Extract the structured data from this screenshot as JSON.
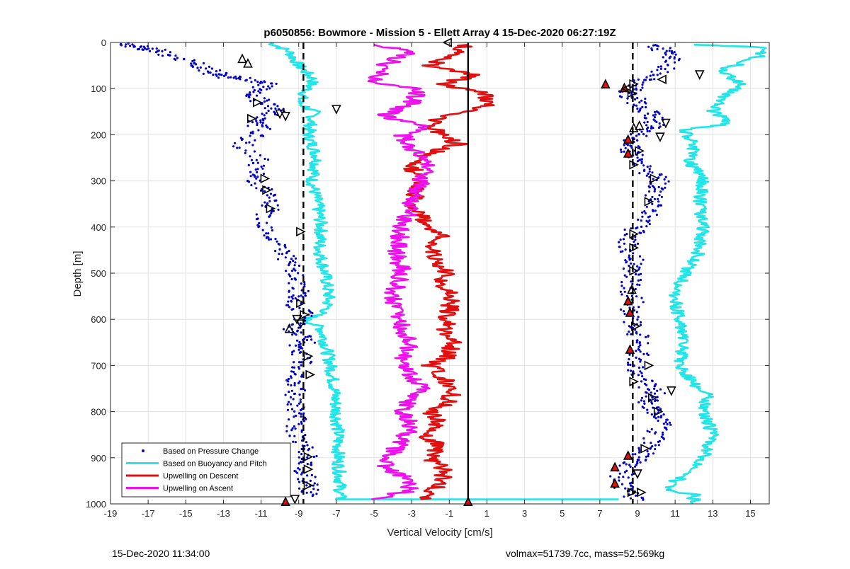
{
  "chart_data": {
    "type": "scatter",
    "title": "p6050856: Bowmore - Mission 5 - Ellett Array 4 15-Dec-2020 06:27:19Z",
    "xlabel": "Vertical Velocity [cm/s]",
    "ylabel": "Depth [m]",
    "xlim": [
      -19,
      16
    ],
    "ylim": [
      0,
      1000
    ],
    "y_reversed": true,
    "grid": true,
    "xticks": [
      -19,
      -17,
      -15,
      -13,
      -11,
      -9,
      -7,
      -5,
      -3,
      -1,
      1,
      3,
      5,
      7,
      9,
      11,
      13,
      15
    ],
    "yticks": [
      0,
      100,
      200,
      300,
      400,
      500,
      600,
      700,
      800,
      900,
      1000
    ],
    "legend_position": "bottom-left",
    "legend": [
      {
        "label": "Based on Pressure Change",
        "color": "#0000cc",
        "style": "dots"
      },
      {
        "label": "Based on Buoyancy and Pitch",
        "color": "#22e5e8",
        "style": "line"
      },
      {
        "label": "Upwelling on Descent",
        "color": "#e01010",
        "style": "line"
      },
      {
        "label": "Upwelling on Ascent",
        "color": "#ee11ee",
        "style": "line"
      }
    ],
    "reference_lines": [
      {
        "x": -8.75,
        "style": "dashed"
      },
      {
        "x": 8.75,
        "style": "dashed"
      },
      {
        "x": 0,
        "style": "solid"
      }
    ],
    "series": [
      {
        "name": "Based on Buoyancy and Pitch",
        "group": "descent",
        "color": "#22e5e8",
        "points": [
          [
            -10.5,
            0
          ],
          [
            -9.5,
            20
          ],
          [
            -9.0,
            50
          ],
          [
            -8.2,
            80
          ],
          [
            -8.5,
            100
          ],
          [
            -9.0,
            130
          ],
          [
            -8.2,
            150
          ],
          [
            -8.5,
            200
          ],
          [
            -8.0,
            250
          ],
          [
            -8.3,
            300
          ],
          [
            -8.0,
            350
          ],
          [
            -7.8,
            400
          ],
          [
            -7.9,
            450
          ],
          [
            -7.6,
            500
          ],
          [
            -7.4,
            550
          ],
          [
            -7.5,
            580
          ],
          [
            -8.6,
            600
          ],
          [
            -7.8,
            620
          ],
          [
            -7.6,
            650
          ],
          [
            -7.3,
            700
          ],
          [
            -7.1,
            750
          ],
          [
            -7.0,
            800
          ],
          [
            -6.9,
            850
          ],
          [
            -6.9,
            900
          ],
          [
            -6.8,
            950
          ],
          [
            -6.8,
            990
          ],
          [
            8.0,
            990
          ]
        ]
      },
      {
        "name": "Based on Buoyancy and Pitch",
        "group": "ascent",
        "color": "#22e5e8",
        "points": [
          [
            12.0,
            1000
          ],
          [
            12.0,
            980
          ],
          [
            10.5,
            970
          ],
          [
            11.0,
            950
          ],
          [
            12.0,
            930
          ],
          [
            12.5,
            900
          ],
          [
            13.0,
            850
          ],
          [
            12.5,
            800
          ],
          [
            12.8,
            760
          ],
          [
            12.0,
            740
          ],
          [
            11.2,
            700
          ],
          [
            11.5,
            650
          ],
          [
            11.2,
            600
          ],
          [
            11.0,
            550
          ],
          [
            11.5,
            500
          ],
          [
            12.2,
            460
          ],
          [
            12.5,
            400
          ],
          [
            12.3,
            350
          ],
          [
            12.5,
            300
          ],
          [
            11.8,
            260
          ],
          [
            12.0,
            220
          ],
          [
            11.5,
            190
          ],
          [
            14.0,
            175
          ],
          [
            13.0,
            150
          ],
          [
            13.5,
            120
          ],
          [
            14.5,
            90
          ],
          [
            13.5,
            60
          ],
          [
            15.5,
            30
          ],
          [
            15.5,
            10
          ],
          [
            12.0,
            5
          ]
        ]
      },
      {
        "name": "Upwelling on Descent",
        "color": "#e01010",
        "points": [
          [
            -2.5,
            990
          ],
          [
            -1.5,
            960
          ],
          [
            -1.2,
            930
          ],
          [
            -2.0,
            900
          ],
          [
            -1.5,
            870
          ],
          [
            -2.5,
            850
          ],
          [
            -1.5,
            820
          ],
          [
            -2.0,
            800
          ],
          [
            -1.0,
            780
          ],
          [
            -0.8,
            750
          ],
          [
            -1.5,
            720
          ],
          [
            -2.0,
            700
          ],
          [
            -1.0,
            680
          ],
          [
            -0.8,
            650
          ],
          [
            -1.2,
            620
          ],
          [
            -1.0,
            580
          ],
          [
            -0.8,
            550
          ],
          [
            -1.5,
            520
          ],
          [
            -1.2,
            500
          ],
          [
            -2.0,
            450
          ],
          [
            -1.5,
            420
          ],
          [
            -2.5,
            380
          ],
          [
            -3.0,
            350
          ],
          [
            -2.5,
            300
          ],
          [
            -3.0,
            270
          ],
          [
            -2.0,
            240
          ],
          [
            -0.5,
            220
          ],
          [
            -1.5,
            200
          ],
          [
            -2.0,
            180
          ],
          [
            -1.5,
            160
          ],
          [
            1.0,
            140
          ],
          [
            1.0,
            110
          ],
          [
            -1.5,
            90
          ],
          [
            0.5,
            70
          ],
          [
            -2.0,
            50
          ],
          [
            -1.0,
            30
          ],
          [
            0.0,
            5
          ]
        ]
      },
      {
        "name": "Upwelling on Ascent",
        "color": "#ee11ee",
        "points": [
          [
            -5.0,
            990
          ],
          [
            -3.0,
            970
          ],
          [
            -3.5,
            940
          ],
          [
            -4.5,
            920
          ],
          [
            -4.0,
            890
          ],
          [
            -3.5,
            860
          ],
          [
            -3.0,
            830
          ],
          [
            -3.5,
            800
          ],
          [
            -3.2,
            780
          ],
          [
            -2.5,
            750
          ],
          [
            -3.0,
            720
          ],
          [
            -3.5,
            680
          ],
          [
            -3.0,
            650
          ],
          [
            -3.5,
            620
          ],
          [
            -3.8,
            580
          ],
          [
            -4.0,
            550
          ],
          [
            -3.5,
            500
          ],
          [
            -3.8,
            450
          ],
          [
            -3.5,
            400
          ],
          [
            -3.0,
            350
          ],
          [
            -2.5,
            300
          ],
          [
            -2.2,
            260
          ],
          [
            -3.0,
            230
          ],
          [
            -3.5,
            200
          ],
          [
            -2.0,
            180
          ],
          [
            -4.5,
            160
          ],
          [
            -3.0,
            130
          ],
          [
            -2.5,
            100
          ],
          [
            -5.0,
            90
          ],
          [
            -4.5,
            50
          ],
          [
            -3.0,
            20
          ],
          [
            -5.0,
            5
          ]
        ]
      },
      {
        "name": "Based on Pressure Change",
        "group": "descent",
        "color": "#0000cc",
        "points": [
          [
            -18.5,
            5
          ],
          [
            -17.5,
            10
          ],
          [
            -16.5,
            20
          ],
          [
            -15,
            40
          ],
          [
            -14,
            60
          ],
          [
            -13,
            70
          ],
          [
            -12,
            80
          ],
          [
            -10.5,
            90
          ],
          [
            -11.5,
            110
          ],
          [
            -11.0,
            130
          ],
          [
            -10.0,
            150
          ],
          [
            -11.5,
            170
          ],
          [
            -11.0,
            190
          ],
          [
            -12.0,
            220
          ],
          [
            -11.0,
            260
          ],
          [
            -11.5,
            290
          ],
          [
            -10.8,
            320
          ],
          [
            -10.5,
            350
          ],
          [
            -10.8,
            380
          ],
          [
            -10.5,
            420
          ],
          [
            -9.8,
            450
          ],
          [
            -9.5,
            480
          ],
          [
            -9.2,
            510
          ],
          [
            -9.0,
            540
          ],
          [
            -9.5,
            560
          ],
          [
            -8.5,
            590
          ],
          [
            -9.5,
            620
          ],
          [
            -8.5,
            640
          ],
          [
            -9.0,
            660
          ],
          [
            -8.8,
            690
          ],
          [
            -9.2,
            720
          ],
          [
            -9.0,
            750
          ],
          [
            -9.3,
            780
          ],
          [
            -9.0,
            810
          ],
          [
            -9.2,
            840
          ],
          [
            -8.8,
            870
          ],
          [
            -8.5,
            900
          ],
          [
            -8.8,
            930
          ],
          [
            -8.5,
            960
          ],
          [
            -8.5,
            985
          ]
        ]
      },
      {
        "name": "Based on Pressure Change",
        "group": "ascent",
        "color": "#0000cc",
        "points": [
          [
            9.0,
            990
          ],
          [
            8.5,
            970
          ],
          [
            8.0,
            950
          ],
          [
            8.5,
            920
          ],
          [
            9.0,
            900
          ],
          [
            9.5,
            880
          ],
          [
            10.0,
            850
          ],
          [
            10.5,
            820
          ],
          [
            10.0,
            800
          ],
          [
            9.5,
            780
          ],
          [
            10.0,
            760
          ],
          [
            9.5,
            740
          ],
          [
            9.0,
            710
          ],
          [
            9.0,
            680
          ],
          [
            9.2,
            650
          ],
          [
            8.8,
            620
          ],
          [
            8.5,
            590
          ],
          [
            8.8,
            560
          ],
          [
            8.5,
            530
          ],
          [
            8.8,
            500
          ],
          [
            8.8,
            470
          ],
          [
            8.5,
            440
          ],
          [
            8.8,
            410
          ],
          [
            9.5,
            380
          ],
          [
            9.8,
            350
          ],
          [
            10.0,
            320
          ],
          [
            10.2,
            300
          ],
          [
            9.5,
            280
          ],
          [
            9.0,
            250
          ],
          [
            8.5,
            230
          ],
          [
            8.8,
            210
          ],
          [
            9.5,
            190
          ],
          [
            10.0,
            170
          ],
          [
            9.5,
            150
          ],
          [
            9.0,
            130
          ],
          [
            8.5,
            110
          ],
          [
            9.0,
            90
          ],
          [
            10.0,
            70
          ],
          [
            11.0,
            40
          ],
          [
            10.5,
            20
          ],
          [
            10.0,
            5
          ]
        ]
      }
    ],
    "markers": {
      "up_triangles": [
        [
          -12.0,
          35
        ],
        [
          -11.7,
          45
        ],
        [
          -9.5,
          620
        ],
        [
          -9.7,
          995
        ],
        [
          7.3,
          90
        ],
        [
          8.3,
          98
        ],
        [
          8.8,
          185
        ],
        [
          9.1,
          180
        ],
        [
          8.5,
          210
        ],
        [
          8.5,
          240
        ],
        [
          8.7,
          535
        ],
        [
          8.5,
          560
        ],
        [
          8.6,
          585
        ],
        [
          8.6,
          665
        ],
        [
          8.5,
          895
        ],
        [
          7.8,
          920
        ],
        [
          7.8,
          955
        ],
        [
          0.0,
          995
        ]
      ],
      "down_triangles": [
        [
          -10.0,
          155
        ],
        [
          -9.7,
          160
        ],
        [
          -7.0,
          145
        ],
        [
          -9.1,
          600
        ],
        [
          -8.9,
          610
        ],
        [
          -9.2,
          990
        ],
        [
          12.3,
          70
        ],
        [
          10.5,
          175
        ],
        [
          10.2,
          205
        ],
        [
          9.0,
          935
        ],
        [
          10.8,
          755
        ]
      ],
      "right_triangles": [
        [
          -11.2,
          130
        ],
        [
          -11.5,
          165
        ],
        [
          -10.8,
          295
        ],
        [
          -10.7,
          320
        ],
        [
          -10.5,
          360
        ],
        [
          -8.9,
          410
        ],
        [
          -8.9,
          565
        ],
        [
          -8.7,
          590
        ],
        [
          -8.5,
          680
        ],
        [
          -8.4,
          720
        ],
        [
          -8.5,
          898
        ],
        [
          -8.5,
          925
        ],
        [
          -8.5,
          960
        ],
        [
          8.8,
          90
        ],
        [
          8.7,
          110
        ],
        [
          9.1,
          235
        ],
        [
          8.8,
          265
        ],
        [
          9.9,
          295
        ],
        [
          9.6,
          345
        ],
        [
          8.8,
          415
        ],
        [
          8.8,
          445
        ],
        [
          8.8,
          495
        ],
        [
          8.9,
          615
        ],
        [
          9.6,
          700
        ],
        [
          8.8,
          735
        ],
        [
          9.8,
          770
        ],
        [
          10.1,
          800
        ],
        [
          9.4,
          880
        ],
        [
          8.7,
          975
        ],
        [
          9.2,
          975
        ]
      ],
      "left_triangles": [
        [
          -1.1,
          0
        ],
        [
          10.3,
          80
        ],
        [
          8.4,
          100
        ]
      ]
    }
  },
  "footer": {
    "left": "15-Dec-2020 11:34:00",
    "right": "volmax=51739.7cc, mass=52.569kg"
  }
}
